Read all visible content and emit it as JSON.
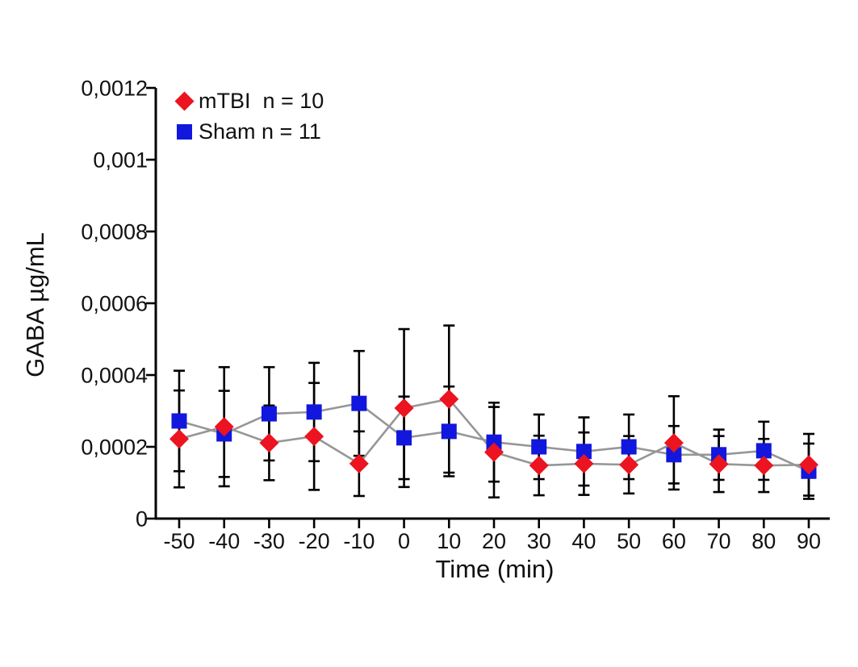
{
  "chart_data": {
    "type": "line",
    "title": "",
    "xlabel": "Time (min)",
    "ylabel": "GABA µg/mL",
    "x": [
      -50,
      -40,
      -30,
      -20,
      -10,
      0,
      10,
      20,
      30,
      40,
      50,
      60,
      70,
      80,
      90
    ],
    "x_tick_labels": [
      "-50",
      "-40",
      "-30",
      "-20",
      "-10",
      "0",
      "10",
      "20",
      "30",
      "40",
      "50",
      "60",
      "70",
      "80",
      "90"
    ],
    "y_ticks": [
      0,
      0.0002,
      0.0004,
      0.0006,
      0.0008,
      0.001,
      0.0012
    ],
    "y_tick_labels": [
      "0",
      "0,0002",
      "0,0004",
      "0,0006",
      "0,0008",
      "0,001",
      "0,0012"
    ],
    "xlim": [
      -55,
      95
    ],
    "ylim": [
      0,
      0.0012
    ],
    "grid": false,
    "legend_position": "top-left-inside",
    "connector_color": "#969696",
    "error_bar_color": "#000000",
    "series": [
      {
        "name": "mTBI  n = 10",
        "marker": "diamond",
        "color": "#eb1420",
        "values": [
          0.000222,
          0.000256,
          0.000211,
          0.000229,
          0.000153,
          0.000308,
          0.000333,
          0.000185,
          0.000148,
          0.000153,
          0.00015,
          0.000211,
          0.000152,
          0.000148,
          0.00015
        ],
        "errors": [
          0.000135,
          0.000166,
          0.000104,
          0.000149,
          9e-05,
          0.00022,
          0.000205,
          0.000126,
          8.3e-05,
          8.7e-05,
          8e-05,
          0.00013,
          7.8e-05,
          7.4e-05,
          8.6e-05
        ]
      },
      {
        "name": "Sham n = 11",
        "marker": "square",
        "color": "#1217dd",
        "values": [
          0.000272,
          0.000236,
          0.000292,
          0.000297,
          0.000321,
          0.000225,
          0.000243,
          0.000213,
          0.0002,
          0.000187,
          0.0002,
          0.000178,
          0.000178,
          0.000189,
          0.000132
        ],
        "errors": [
          0.00014,
          0.00012,
          0.00013,
          0.000137,
          0.000146,
          0.000115,
          0.000125,
          0.00011,
          9e-05,
          9.5e-05,
          9e-05,
          8e-05,
          7e-05,
          8.1e-05,
          7.7e-05
        ]
      }
    ]
  }
}
